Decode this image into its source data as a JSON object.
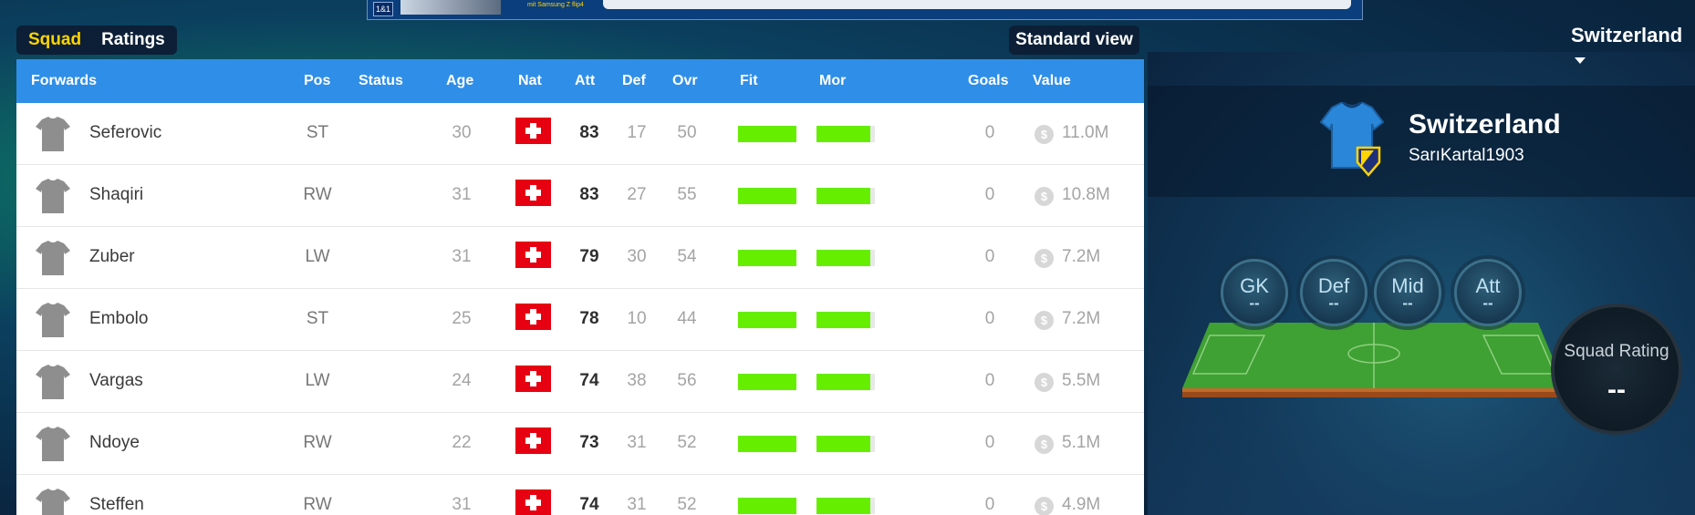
{
  "tabs": [
    {
      "label": "Squad",
      "active": true
    },
    {
      "label": "Ratings",
      "active": false
    }
  ],
  "standard_view_label": "Standard view",
  "country_selector": "Switzerland",
  "ad": {
    "logo_text": "1&1",
    "tagline": "mit Samsung Z flip4"
  },
  "table": {
    "headers": {
      "group": "Forwards",
      "pos": "Pos",
      "status": "Status",
      "age": "Age",
      "nat": "Nat",
      "att": "Att",
      "def": "Def",
      "ovr": "Ovr",
      "fit": "Fit",
      "mor": "Mor",
      "goals": "Goals",
      "value": "Value"
    },
    "rows": [
      {
        "name": "Seferovic",
        "pos": "ST",
        "age": "30",
        "nat": "Switzerland",
        "att": "83",
        "def": "17",
        "ovr": "50",
        "fit": 1.0,
        "mor": 0.92,
        "goals": "0",
        "value": "11.0M"
      },
      {
        "name": "Shaqiri",
        "pos": "RW",
        "age": "31",
        "nat": "Switzerland",
        "att": "83",
        "def": "27",
        "ovr": "55",
        "fit": 1.0,
        "mor": 0.92,
        "goals": "0",
        "value": "10.8M"
      },
      {
        "name": "Zuber",
        "pos": "LW",
        "age": "31",
        "nat": "Switzerland",
        "att": "79",
        "def": "30",
        "ovr": "54",
        "fit": 1.0,
        "mor": 0.92,
        "goals": "0",
        "value": "7.2M"
      },
      {
        "name": "Embolo",
        "pos": "ST",
        "age": "25",
        "nat": "Switzerland",
        "att": "78",
        "def": "10",
        "ovr": "44",
        "fit": 1.0,
        "mor": 0.92,
        "goals": "0",
        "value": "7.2M"
      },
      {
        "name": "Vargas",
        "pos": "LW",
        "age": "24",
        "nat": "Switzerland",
        "att": "74",
        "def": "38",
        "ovr": "56",
        "fit": 1.0,
        "mor": 0.92,
        "goals": "0",
        "value": "5.5M"
      },
      {
        "name": "Ndoye",
        "pos": "RW",
        "age": "22",
        "nat": "Switzerland",
        "att": "73",
        "def": "31",
        "ovr": "52",
        "fit": 1.0,
        "mor": 0.92,
        "goals": "0",
        "value": "5.1M"
      },
      {
        "name": "Steffen",
        "pos": "RW",
        "age": "31",
        "nat": "Switzerland",
        "att": "74",
        "def": "31",
        "ovr": "52",
        "fit": 1.0,
        "mor": 0.92,
        "goals": "0",
        "value": "4.9M"
      }
    ],
    "coin_symbol": "$"
  },
  "team_card": {
    "name": "Switzerland",
    "manager": "SarıKartal1903"
  },
  "position_ratings": [
    {
      "label": "GK",
      "value": "--"
    },
    {
      "label": "Def",
      "value": "--"
    },
    {
      "label": "Mid",
      "value": "--"
    },
    {
      "label": "Att",
      "value": "--"
    }
  ],
  "squad_rating": {
    "label": "Squad Rating",
    "value": "--"
  },
  "colors": {
    "header_blue": "#2f8ee8",
    "active_tab": "#ffd400",
    "bar_green": "#66ee00",
    "flag_red": "#e60012"
  }
}
